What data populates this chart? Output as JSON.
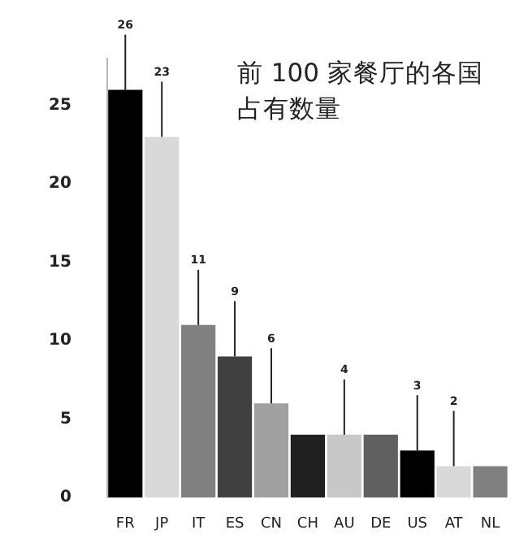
{
  "chart_data": {
    "type": "bar",
    "title": "前 100 家餐厅的各国占有数量",
    "categories": [
      "FR",
      "JP",
      "IT",
      "ES",
      "CN",
      "CH",
      "AU",
      "DE",
      "US",
      "AT",
      "NL"
    ],
    "values": [
      26,
      23,
      11,
      9,
      6,
      4,
      4,
      4,
      3,
      2,
      2
    ],
    "colors": [
      "#000000",
      "#d9d9d9",
      "#808080",
      "#404040",
      "#a0a0a0",
      "#202020",
      "#c8c8c8",
      "#606060",
      "#000000",
      "#d9d9d9",
      "#808080"
    ],
    "value_labels": [
      "26",
      "23",
      "11",
      "9",
      "6",
      null,
      "4",
      null,
      "3",
      "2",
      null
    ],
    "ylim": [
      0,
      28
    ],
    "yticks": [
      0,
      5,
      10,
      15,
      20,
      25
    ],
    "grid": false,
    "legend": false
  }
}
